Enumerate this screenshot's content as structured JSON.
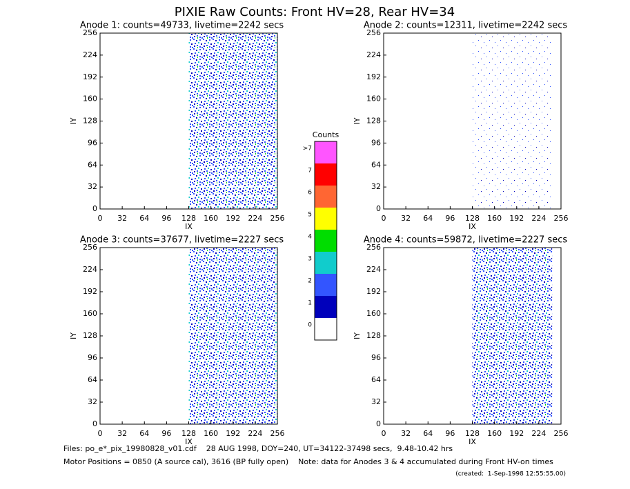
{
  "title": "PIXIE Raw Counts:  Front HV=28, Rear HV=34",
  "chart_data": [
    {
      "type": "heatmap",
      "title": "Anode 1: counts=49733, livetime=2242 secs",
      "xlabel": "IX",
      "ylabel": "IY",
      "xlim": [
        0,
        256
      ],
      "ylim": [
        0,
        256
      ],
      "xticks": [
        0,
        32,
        64,
        96,
        128,
        160,
        192,
        224,
        256
      ],
      "yticks": [
        0,
        32,
        64,
        96,
        128,
        160,
        192,
        224,
        256
      ]
    },
    {
      "type": "heatmap",
      "title": "Anode 2: counts=12311, livetime=2242 secs",
      "xlabel": "IX",
      "ylabel": "IY",
      "xlim": [
        0,
        256
      ],
      "ylim": [
        0,
        256
      ],
      "xticks": [
        0,
        32,
        64,
        96,
        128,
        160,
        192,
        224,
        256
      ],
      "yticks": [
        0,
        32,
        64,
        96,
        128,
        160,
        192,
        224,
        256
      ]
    },
    {
      "type": "heatmap",
      "title": "Anode 3: counts=37677, livetime=2227 secs",
      "xlabel": "IX",
      "ylabel": "IY",
      "xlim": [
        0,
        256
      ],
      "ylim": [
        0,
        256
      ],
      "xticks": [
        0,
        32,
        64,
        96,
        128,
        160,
        192,
        224,
        256
      ],
      "yticks": [
        0,
        32,
        64,
        96,
        128,
        160,
        192,
        224,
        256
      ]
    },
    {
      "type": "heatmap",
      "title": "Anode 4: counts=59872, livetime=2227 secs",
      "xlabel": "IX",
      "ylabel": "IY",
      "xlim": [
        0,
        256
      ],
      "ylim": [
        0,
        256
      ],
      "xticks": [
        0,
        32,
        64,
        96,
        128,
        160,
        192,
        224,
        256
      ],
      "yticks": [
        0,
        32,
        64,
        96,
        128,
        160,
        192,
        224,
        256
      ]
    }
  ],
  "colorbar": {
    "title": "Counts",
    "labels": [
      ">7",
      7,
      6,
      5,
      4,
      3,
      2,
      1,
      0
    ],
    "colors": [
      "#ff55ff",
      "#ff0000",
      "#ff6633",
      "#ffff00",
      "#00dd00",
      "#11cccc",
      "#3355ff",
      "#0000bb",
      "#ffffff"
    ]
  },
  "footer": {
    "files": "Files: po_e*_pix_19980828_v01.cdf    28 AUG 1998, DOY=240, UT=34122-37498 secs,  9.48-10.42 hrs",
    "motor": "Motor Positions = 0850 (A source cal), 3616 (BP fully open)    Note: data for Anodes 3 & 4 accumulated during Front HV-on times",
    "created": "(created:  1-Sep-1998 12:55:55.00)"
  }
}
